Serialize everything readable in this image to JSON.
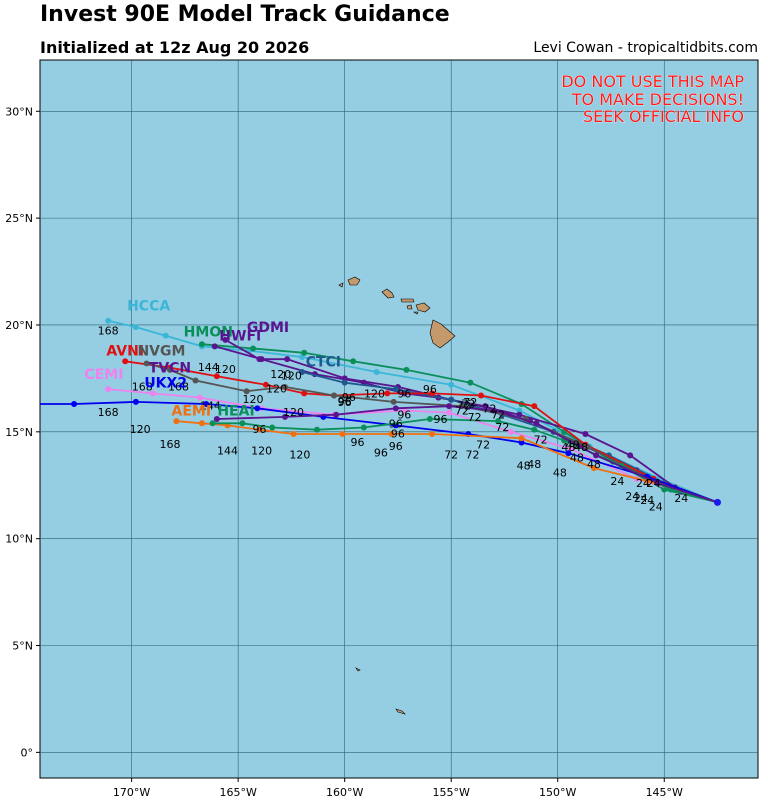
{
  "header": {
    "title": "Invest 90E Model Track Guidance",
    "subtitle": "Initialized at 12z Aug 20 2026",
    "credit": "Levi Cowan - tropicaltidbits.com"
  },
  "warning": [
    "DO NOT USE THIS MAP",
    "TO MAKE DECISIONS!",
    "SEEK OFFICIAL INFO"
  ],
  "colors": {
    "ocean": "#95cee3",
    "land": "#c49a6c",
    "warning": "#ff1a1a"
  },
  "axes": {
    "lat_ticks": [
      {
        "v": 0,
        "label": "0°"
      },
      {
        "v": 5,
        "label": "5°N"
      },
      {
        "v": 10,
        "label": "10°N"
      },
      {
        "v": 15,
        "label": "15°N"
      },
      {
        "v": 20,
        "label": "20°N"
      },
      {
        "v": 25,
        "label": "25°N"
      },
      {
        "v": 30,
        "label": "30°N"
      }
    ],
    "lon_ticks": [
      {
        "v": -170,
        "label": "170°W"
      },
      {
        "v": -165,
        "label": "165°W"
      },
      {
        "v": -160,
        "label": "160°W"
      },
      {
        "v": -155,
        "label": "155°W"
      },
      {
        "v": -150,
        "label": "150°W"
      },
      {
        "v": -145,
        "label": "145°W"
      }
    ],
    "lon_range": [
      -174.3,
      -140.6
    ],
    "lat_range": [
      -1.2,
      32.4
    ]
  },
  "start": [
    -142.5,
    11.7
  ],
  "models": [
    {
      "name": "HCCA",
      "color": "#3bb6d8",
      "pts": [
        [
          -142.5,
          11.7
        ],
        [
          -145.2,
          12.8
        ],
        [
          -148.5,
          14.3
        ],
        [
          -151.8,
          16.0
        ],
        [
          -155.0,
          17.2
        ],
        [
          -158.5,
          17.8
        ],
        [
          -162.0,
          18.5
        ],
        [
          -164.5,
          18.8
        ],
        [
          -166.7,
          19.0
        ],
        [
          -168.4,
          19.5
        ],
        [
          -169.8,
          19.9
        ],
        [
          -171.1,
          20.2
        ]
      ],
      "hour_labels": [
        [
          -171.1,
          20.2,
          "168"
        ]
      ],
      "name_at": [
        -169.2,
        20.9
      ]
    },
    {
      "name": "HMON",
      "color": "#0a8f5a",
      "pts": [
        [
          -142.5,
          11.7
        ],
        [
          -145.0,
          12.3
        ],
        [
          -147.4,
          13.6
        ],
        [
          -149.7,
          15.0
        ],
        [
          -151.7,
          16.3
        ],
        [
          -154.1,
          17.3
        ],
        [
          -157.1,
          17.9
        ],
        [
          -159.6,
          18.3
        ],
        [
          -161.9,
          18.7
        ],
        [
          -164.3,
          18.9
        ],
        [
          -166.7,
          19.1
        ]
      ],
      "hour_labels": [
        [
          -165.6,
          18.4,
          "120"
        ]
      ],
      "name_at": [
        -166.4,
        19.7
      ]
    },
    {
      "name": "GDMI",
      "color": "#5a148f",
      "pts": [
        [
          -142.5,
          11.7
        ],
        [
          -144.5,
          12.4
        ],
        [
          -146.6,
          13.9
        ],
        [
          -148.7,
          14.9
        ],
        [
          -151.8,
          15.8
        ],
        [
          -155.0,
          16.5
        ],
        [
          -157.5,
          17.1
        ],
        [
          -160.0,
          17.5
        ],
        [
          -162.7,
          18.4
        ],
        [
          -164.0,
          18.4
        ],
        [
          -165.6,
          19.3
        ]
      ],
      "hour_labels": [
        [
          -162.5,
          18.1,
          "120"
        ]
      ],
      "name_at": [
        -163.6,
        19.9
      ]
    },
    {
      "name": "HWFI",
      "color": "#5a148f",
      "pts": [
        [
          -142.5,
          11.7
        ],
        [
          -144.2,
          12.2
        ],
        [
          -146.3,
          13.2
        ],
        [
          -148.9,
          14.4
        ],
        [
          -151.3,
          15.5
        ],
        [
          -153.4,
          16.2
        ],
        [
          -155.6,
          16.6
        ],
        [
          -157.2,
          16.8
        ],
        [
          -159.1,
          17.3
        ],
        [
          -161.4,
          17.7
        ],
        [
          -163.9,
          18.4
        ],
        [
          -166.1,
          19.0
        ]
      ],
      "hour_labels": [
        [
          -163.2,
          17.5,
          "120"
        ]
      ],
      "name_at": [
        -164.9,
        19.5
      ]
    },
    {
      "name": "CTCI",
      "color": "#1f5a8f",
      "pts": [
        [
          -142.5,
          11.7
        ],
        [
          -145.0,
          12.6
        ],
        [
          -147.6,
          13.9
        ],
        [
          -150.2,
          15.0
        ],
        [
          -152.6,
          15.8
        ],
        [
          -155.0,
          16.5
        ],
        [
          -157.6,
          17.0
        ],
        [
          -160.0,
          17.3
        ],
        [
          -162.0,
          17.8
        ]
      ],
      "hour_labels": [
        [
          -159.8,
          17.1,
          "96"
        ]
      ],
      "name_at": [
        -161.0,
        18.3
      ]
    },
    {
      "name": "AVNI",
      "color": "#e01010",
      "pts": [
        [
          -142.5,
          11.7
        ],
        [
          -145.5,
          12.8
        ],
        [
          -148.7,
          14.4
        ],
        [
          -151.1,
          16.2
        ],
        [
          -153.6,
          16.7
        ],
        [
          -155.9,
          16.8
        ],
        [
          -158.0,
          16.8
        ],
        [
          -160.5,
          16.7
        ],
        [
          -161.9,
          16.8
        ],
        [
          -163.7,
          17.2
        ],
        [
          -166.0,
          17.6
        ],
        [
          -168.2,
          18.0
        ],
        [
          -170.3,
          18.3
        ]
      ],
      "hour_labels": [
        [
          -169.5,
          17.6,
          "168"
        ],
        [
          -164.3,
          17.0,
          "120"
        ],
        [
          -154.2,
          16.8,
          "72"
        ]
      ],
      "name_at": [
        -170.3,
        18.8
      ]
    },
    {
      "name": "NVGM",
      "color": "#555555",
      "pts": [
        [
          -142.5,
          11.7
        ],
        [
          -145.5,
          12.7
        ],
        [
          -148.6,
          14.3
        ],
        [
          -151.5,
          15.6
        ],
        [
          -154.5,
          16.2
        ],
        [
          -157.7,
          16.4
        ],
        [
          -160.5,
          16.7
        ],
        [
          -162.8,
          17.1
        ],
        [
          -164.6,
          16.9
        ],
        [
          -167.0,
          17.4
        ],
        [
          -168.2,
          17.9
        ],
        [
          -169.3,
          18.2
        ]
      ],
      "hour_labels": [
        [
          -167.8,
          17.6,
          "168"
        ],
        [
          -166.4,
          18.5,
          "144"
        ],
        [
          -166.3,
          16.7,
          "144"
        ],
        [
          -162.4,
          16.4,
          "120"
        ],
        [
          -160.0,
          16.9,
          "96"
        ]
      ],
      "name_at": [
        -168.6,
        18.8
      ]
    },
    {
      "name": "CEMI",
      "color": "#ee82ee",
      "pts": [
        [
          -142.5,
          11.7
        ],
        [
          -146.3,
          12.8
        ],
        [
          -149.4,
          14.2
        ],
        [
          -152.2,
          15.0
        ],
        [
          -155.1,
          15.9
        ],
        [
          -157.2,
          16.0
        ],
        [
          -160.5,
          15.8
        ],
        [
          -163.9,
          16.1
        ],
        [
          -166.8,
          16.6
        ],
        [
          -169.0,
          16.8
        ],
        [
          -171.1,
          17.0
        ]
      ],
      "hour_labels": [
        [
          -171.1,
          16.4,
          "168"
        ],
        [
          -154.4,
          16.7,
          "72"
        ]
      ],
      "name_at": [
        -171.3,
        17.7
      ]
    },
    {
      "name": "UKX2",
      "color": "#0000ee",
      "pts": [
        [
          -142.5,
          11.7
        ],
        [
          -145.8,
          12.9
        ],
        [
          -149.5,
          14.0
        ],
        [
          -151.7,
          14.5
        ],
        [
          -154.2,
          14.9
        ],
        [
          -157.6,
          15.3
        ],
        [
          -161.0,
          15.7
        ],
        [
          -164.1,
          16.1
        ],
        [
          -166.5,
          16.3
        ],
        [
          -169.8,
          16.4
        ],
        [
          -172.7,
          16.3
        ],
        [
          -175.5,
          16.3
        ]
      ],
      "hour_labels": [
        [
          -169.6,
          15.6,
          "120"
        ],
        [
          -151.6,
          13.9,
          "48"
        ],
        [
          -154.0,
          14.4,
          "72"
        ],
        [
          -157.6,
          14.8,
          "96"
        ]
      ],
      "name_at": [
        -168.4,
        17.3
      ]
    },
    {
      "name": "AEMI",
      "color": "#f07010",
      "pts": [
        [
          -142.5,
          11.7
        ],
        [
          -145.8,
          12.7
        ],
        [
          -148.3,
          13.3
        ],
        [
          -151.7,
          14.7
        ],
        [
          -155.9,
          14.9
        ],
        [
          -157.8,
          14.9
        ],
        [
          -160.1,
          14.9
        ],
        [
          -162.4,
          14.9
        ],
        [
          -164.0,
          15.1
        ],
        [
          -165.5,
          15.3
        ],
        [
          -166.7,
          15.4
        ],
        [
          -167.9,
          15.5
        ]
      ],
      "hour_labels": [
        [
          -168.2,
          14.9,
          "168"
        ],
        [
          -165.5,
          14.6,
          "144"
        ],
        [
          -163.9,
          14.6,
          "120"
        ],
        [
          -162.1,
          14.4,
          "120"
        ],
        [
          -158.3,
          14.5,
          "96"
        ],
        [
          -155.0,
          14.4,
          "72"
        ]
      ],
      "name_at": [
        -167.2,
        16.0
      ]
    },
    {
      "name": "HEAI",
      "color": "#0a8f5a",
      "pts": [
        [
          -142.5,
          11.7
        ],
        [
          -144.7,
          12.3
        ],
        [
          -147.0,
          13.4
        ],
        [
          -149.7,
          14.6
        ],
        [
          -151.1,
          15.1
        ],
        [
          -152.8,
          15.5
        ],
        [
          -156.0,
          15.6
        ],
        [
          -159.1,
          15.2
        ],
        [
          -161.3,
          15.1
        ],
        [
          -163.4,
          15.2
        ],
        [
          -164.8,
          15.4
        ],
        [
          -166.2,
          15.4
        ]
      ],
      "hour_labels": [
        [
          -159.4,
          15.0,
          "96"
        ],
        [
          -157.5,
          15.4,
          "96"
        ]
      ],
      "name_at": [
        -165.1,
        16.0
      ]
    },
    {
      "name": "TVCN",
      "color": "#5a148f",
      "pts": [
        [
          -142.5,
          11.7
        ],
        [
          -145.3,
          12.6
        ],
        [
          -148.2,
          13.9
        ],
        [
          -151.0,
          15.4
        ],
        [
          -153.0,
          16.0
        ],
        [
          -155.1,
          16.2
        ],
        [
          -157.6,
          16.1
        ],
        [
          -160.4,
          15.8
        ],
        [
          -162.8,
          15.7
        ],
        [
          -166.0,
          15.6
        ]
      ],
      "hour_labels": [
        [
          -164.0,
          15.6,
          "96"
        ],
        [
          -152.6,
          15.7,
          "72"
        ],
        [
          -150.8,
          15.1,
          "72"
        ]
      ],
      "name_at": [
        -168.2,
        18.0
      ]
    }
  ],
  "extra_hour_labels": [
    [
      -149.5,
      14.3,
      "48"
    ],
    [
      -148.9,
      14.3,
      "48"
    ],
    [
      -149.9,
      13.1,
      "48"
    ],
    [
      -149.1,
      13.8,
      "48"
    ],
    [
      -151.1,
      13.5,
      "48"
    ],
    [
      -147.2,
      12.7,
      "24"
    ],
    [
      -146.0,
      12.6,
      "24"
    ],
    [
      -145.5,
      12.6,
      "24"
    ],
    [
      -146.5,
      12.0,
      "24"
    ],
    [
      -145.8,
      11.8,
      "24"
    ],
    [
      -144.2,
      11.9,
      "24"
    ],
    [
      -145.4,
      11.5,
      "24"
    ],
    [
      -146.1,
      11.9,
      "24"
    ],
    [
      -148.3,
      13.5,
      "48"
    ],
    [
      -149.3,
      14.4,
      "48"
    ],
    [
      -155.5,
      15.6,
      "96"
    ],
    [
      -157.2,
      16.8,
      "96"
    ],
    [
      -156.0,
      17.0,
      "96"
    ],
    [
      -160.0,
      16.4,
      "96"
    ],
    [
      -163.0,
      17.7,
      "120"
    ],
    [
      -157.2,
      15.8,
      "96"
    ],
    [
      -157.6,
      15.4,
      "96"
    ],
    [
      -158.6,
      16.8,
      "120"
    ],
    [
      -154.1,
      16.4,
      "72"
    ],
    [
      -152.8,
      15.8,
      "72"
    ],
    [
      -153.2,
      16.1,
      "72"
    ],
    [
      -153.9,
      15.7,
      "72"
    ],
    [
      -154.5,
      16.0,
      "72"
    ],
    [
      -153.5,
      14.4,
      "72"
    ]
  ]
}
